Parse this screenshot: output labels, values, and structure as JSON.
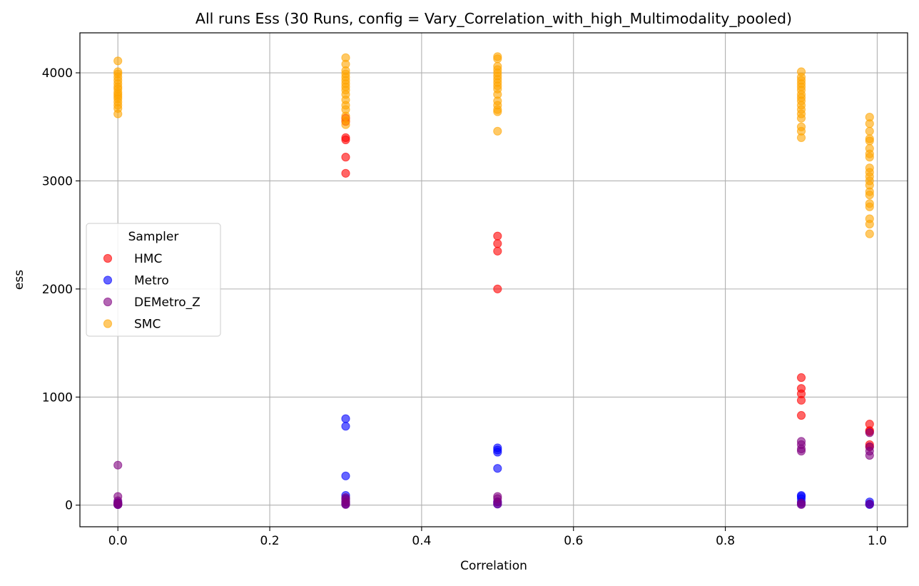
{
  "chart_data": {
    "type": "scatter",
    "title": "All runs Ess (30 Runs, config = Vary_Correlation_with_high_Multimodality_pooled)",
    "xlabel": "Correlation",
    "ylabel": "ess",
    "xlim": [
      -0.05,
      1.04
    ],
    "ylim": [
      -200,
      4370
    ],
    "xticks": [
      0.0,
      0.2,
      0.4,
      0.6,
      0.8,
      1.0
    ],
    "xtick_labels": [
      "0.0",
      "0.2",
      "0.4",
      "0.6",
      "0.8",
      "1.0"
    ],
    "yticks": [
      0,
      1000,
      2000,
      3000,
      4000
    ],
    "ytick_labels": [
      "0",
      "1000",
      "2000",
      "3000",
      "4000"
    ],
    "grid": true,
    "legend": {
      "title": "Sampler",
      "placement": "center-left"
    },
    "series": [
      {
        "name": "HMC",
        "color": "#ff0000",
        "points": [
          [
            0.0,
            5
          ],
          [
            0.0,
            10
          ],
          [
            0.0,
            15
          ],
          [
            0.3,
            3580
          ],
          [
            0.3,
            3550
          ],
          [
            0.3,
            3400
          ],
          [
            0.3,
            3380
          ],
          [
            0.3,
            3220
          ],
          [
            0.3,
            3070
          ],
          [
            0.5,
            2490
          ],
          [
            0.5,
            2420
          ],
          [
            0.5,
            2350
          ],
          [
            0.5,
            2000
          ],
          [
            0.9,
            1180
          ],
          [
            0.9,
            1080
          ],
          [
            0.9,
            1030
          ],
          [
            0.9,
            970
          ],
          [
            0.9,
            830
          ],
          [
            0.99,
            750
          ],
          [
            0.99,
            690
          ],
          [
            0.99,
            680
          ],
          [
            0.99,
            560
          ],
          [
            0.99,
            540
          ]
        ]
      },
      {
        "name": "Metro",
        "color": "#0000ff",
        "points": [
          [
            0.0,
            5
          ],
          [
            0.0,
            15
          ],
          [
            0.0,
            25
          ],
          [
            0.3,
            800
          ],
          [
            0.3,
            730
          ],
          [
            0.3,
            270
          ],
          [
            0.3,
            90
          ],
          [
            0.3,
            60
          ],
          [
            0.3,
            30
          ],
          [
            0.3,
            10
          ],
          [
            0.5,
            530
          ],
          [
            0.5,
            510
          ],
          [
            0.5,
            490
          ],
          [
            0.5,
            340
          ],
          [
            0.5,
            30
          ],
          [
            0.5,
            10
          ],
          [
            0.9,
            90
          ],
          [
            0.9,
            80
          ],
          [
            0.9,
            60
          ],
          [
            0.9,
            30
          ],
          [
            0.9,
            10
          ],
          [
            0.99,
            30
          ],
          [
            0.99,
            10
          ],
          [
            0.99,
            5
          ]
        ]
      },
      {
        "name": "DEMetro_Z",
        "color": "#800080",
        "points": [
          [
            0.0,
            370
          ],
          [
            0.0,
            80
          ],
          [
            0.0,
            40
          ],
          [
            0.0,
            20
          ],
          [
            0.0,
            10
          ],
          [
            0.0,
            5
          ],
          [
            0.3,
            70
          ],
          [
            0.3,
            50
          ],
          [
            0.3,
            30
          ],
          [
            0.3,
            15
          ],
          [
            0.3,
            5
          ],
          [
            0.5,
            80
          ],
          [
            0.5,
            60
          ],
          [
            0.5,
            30
          ],
          [
            0.5,
            10
          ],
          [
            0.9,
            590
          ],
          [
            0.9,
            560
          ],
          [
            0.9,
            520
          ],
          [
            0.9,
            500
          ],
          [
            0.9,
            20
          ],
          [
            0.9,
            5
          ],
          [
            0.99,
            670
          ],
          [
            0.99,
            540
          ],
          [
            0.99,
            500
          ],
          [
            0.99,
            460
          ],
          [
            0.99,
            10
          ]
        ]
      },
      {
        "name": "SMC",
        "color": "#ffa500",
        "points": [
          [
            0.0,
            4110
          ],
          [
            0.0,
            4010
          ],
          [
            0.0,
            3990
          ],
          [
            0.0,
            3960
          ],
          [
            0.0,
            3930
          ],
          [
            0.0,
            3900
          ],
          [
            0.0,
            3870
          ],
          [
            0.0,
            3850
          ],
          [
            0.0,
            3820
          ],
          [
            0.0,
            3800
          ],
          [
            0.0,
            3780
          ],
          [
            0.0,
            3760
          ],
          [
            0.0,
            3730
          ],
          [
            0.0,
            3700
          ],
          [
            0.0,
            3670
          ],
          [
            0.0,
            3620
          ],
          [
            0.3,
            4140
          ],
          [
            0.3,
            4080
          ],
          [
            0.3,
            4020
          ],
          [
            0.3,
            3990
          ],
          [
            0.3,
            3960
          ],
          [
            0.3,
            3930
          ],
          [
            0.3,
            3900
          ],
          [
            0.3,
            3870
          ],
          [
            0.3,
            3840
          ],
          [
            0.3,
            3800
          ],
          [
            0.3,
            3750
          ],
          [
            0.3,
            3700
          ],
          [
            0.3,
            3660
          ],
          [
            0.3,
            3600
          ],
          [
            0.3,
            3560
          ],
          [
            0.3,
            3520
          ],
          [
            0.5,
            4150
          ],
          [
            0.5,
            4130
          ],
          [
            0.5,
            4060
          ],
          [
            0.5,
            4030
          ],
          [
            0.5,
            4000
          ],
          [
            0.5,
            3970
          ],
          [
            0.5,
            3940
          ],
          [
            0.5,
            3910
          ],
          [
            0.5,
            3880
          ],
          [
            0.5,
            3850
          ],
          [
            0.5,
            3800
          ],
          [
            0.5,
            3740
          ],
          [
            0.5,
            3700
          ],
          [
            0.5,
            3660
          ],
          [
            0.5,
            3640
          ],
          [
            0.5,
            3460
          ],
          [
            0.9,
            4010
          ],
          [
            0.9,
            3960
          ],
          [
            0.9,
            3930
          ],
          [
            0.9,
            3900
          ],
          [
            0.9,
            3870
          ],
          [
            0.9,
            3840
          ],
          [
            0.9,
            3800
          ],
          [
            0.9,
            3770
          ],
          [
            0.9,
            3740
          ],
          [
            0.9,
            3700
          ],
          [
            0.9,
            3660
          ],
          [
            0.9,
            3620
          ],
          [
            0.9,
            3580
          ],
          [
            0.9,
            3500
          ],
          [
            0.9,
            3460
          ],
          [
            0.9,
            3400
          ],
          [
            0.99,
            3590
          ],
          [
            0.99,
            3530
          ],
          [
            0.99,
            3460
          ],
          [
            0.99,
            3390
          ],
          [
            0.99,
            3370
          ],
          [
            0.99,
            3300
          ],
          [
            0.99,
            3250
          ],
          [
            0.99,
            3220
          ],
          [
            0.99,
            3120
          ],
          [
            0.99,
            3080
          ],
          [
            0.99,
            3040
          ],
          [
            0.99,
            3000
          ],
          [
            0.99,
            2960
          ],
          [
            0.99,
            2900
          ],
          [
            0.99,
            2870
          ],
          [
            0.99,
            2790
          ],
          [
            0.99,
            2760
          ],
          [
            0.99,
            2650
          ],
          [
            0.99,
            2600
          ],
          [
            0.99,
            2510
          ]
        ]
      }
    ]
  }
}
